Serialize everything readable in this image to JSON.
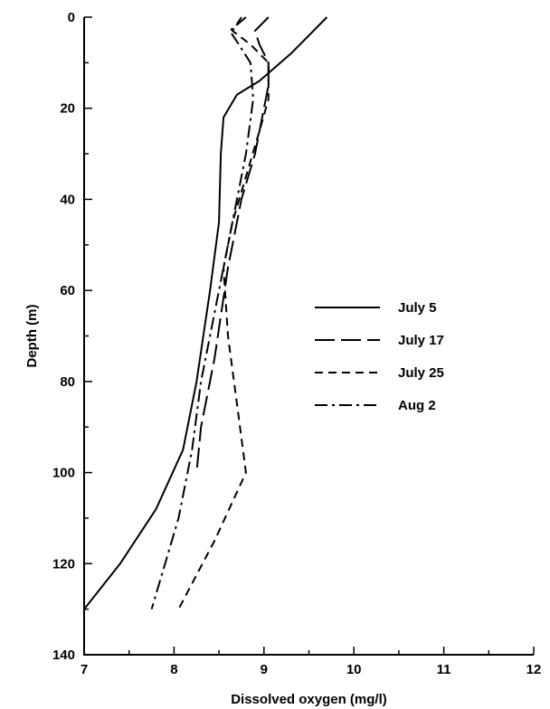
{
  "chart_data": {
    "type": "line",
    "title": "",
    "xlabel": "Dissolved oxygen (mg/l)",
    "ylabel": "Depth (m)",
    "xlim": [
      7,
      12
    ],
    "ylim": [
      0,
      140
    ],
    "y_inverted": true,
    "x_major_ticks": [
      7,
      8,
      9,
      10,
      11,
      12
    ],
    "x_minor_step": 0.5,
    "y_major_ticks": [
      0,
      20,
      40,
      60,
      80,
      100,
      120,
      140
    ],
    "y_minor_step": 10,
    "grid": false,
    "legend_position": "center-right",
    "series": [
      {
        "name": "July 5",
        "style": "solid",
        "points": [
          [
            9.7,
            0
          ],
          [
            9.3,
            8
          ],
          [
            8.95,
            14
          ],
          [
            8.7,
            17
          ],
          [
            8.55,
            22
          ],
          [
            8.52,
            30
          ],
          [
            8.5,
            45
          ],
          [
            8.4,
            60
          ],
          [
            8.25,
            80
          ],
          [
            8.1,
            95
          ],
          [
            7.8,
            108
          ],
          [
            7.4,
            120
          ],
          [
            7.0,
            130
          ]
        ]
      },
      {
        "name": "July 17",
        "style": "long-dash",
        "points": [
          [
            9.05,
            0
          ],
          [
            8.9,
            3
          ],
          [
            8.95,
            6
          ],
          [
            9.05,
            10
          ],
          [
            9.05,
            15
          ],
          [
            9.0,
            20
          ],
          [
            8.9,
            30
          ],
          [
            8.75,
            40
          ],
          [
            8.6,
            55
          ],
          [
            8.45,
            75
          ],
          [
            8.3,
            90
          ],
          [
            8.25,
            100
          ]
        ]
      },
      {
        "name": "July 25",
        "style": "short-dash",
        "points": [
          [
            8.75,
            0
          ],
          [
            8.65,
            3
          ],
          [
            8.85,
            6
          ],
          [
            9.05,
            10
          ],
          [
            9.05,
            18
          ],
          [
            8.95,
            25
          ],
          [
            8.8,
            35
          ],
          [
            8.65,
            45
          ],
          [
            8.55,
            55
          ],
          [
            8.6,
            70
          ],
          [
            8.7,
            85
          ],
          [
            8.8,
            100
          ],
          [
            8.45,
            115
          ],
          [
            8.05,
            130
          ]
        ]
      },
      {
        "name": "Aug 2",
        "style": "dash-dot",
        "points": [
          [
            8.8,
            0
          ],
          [
            8.62,
            3
          ],
          [
            8.72,
            6
          ],
          [
            8.85,
            10
          ],
          [
            8.88,
            18
          ],
          [
            8.8,
            30
          ],
          [
            8.6,
            50
          ],
          [
            8.45,
            65
          ],
          [
            8.3,
            80
          ],
          [
            8.2,
            95
          ],
          [
            8.05,
            110
          ],
          [
            7.9,
            120
          ],
          [
            7.75,
            130
          ]
        ]
      }
    ]
  }
}
